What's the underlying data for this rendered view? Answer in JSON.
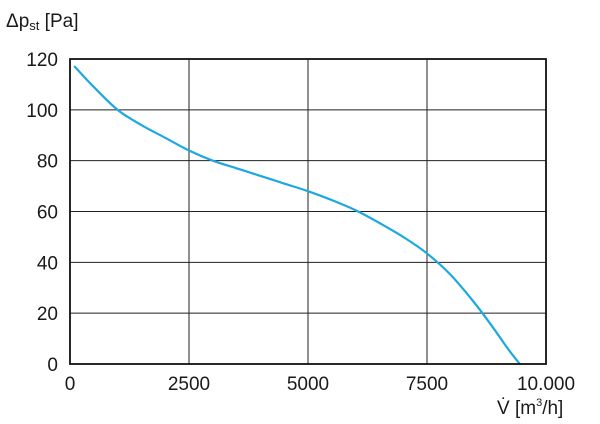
{
  "chart_data": {
    "type": "line",
    "ylabel": {
      "symbol": "Δp",
      "subscript": "st",
      "unit": "[Pa]"
    },
    "xlabel": {
      "symbol": "V̇",
      "unit_before": "[m",
      "unit_sup": "3",
      "unit_after": "/h]"
    },
    "xlim": [
      0,
      10000
    ],
    "ylim": [
      0,
      120
    ],
    "x_ticks": [
      0,
      2500,
      5000,
      7500,
      10000
    ],
    "x_tick_labels": [
      "0",
      "2500",
      "5000",
      "7500",
      "10.000"
    ],
    "y_ticks": [
      0,
      20,
      40,
      60,
      80,
      100,
      120
    ],
    "y_tick_labels": [
      "0",
      "20",
      "40",
      "60",
      "80",
      "100",
      "120"
    ],
    "grid": true,
    "line_color": "#1ea8e0",
    "series": [
      {
        "x": [
          100,
          500,
          1000,
          1500,
          2000,
          2500,
          3000,
          3500,
          4000,
          4500,
          5000,
          5500,
          6000,
          6500,
          7000,
          7500,
          8000,
          8500,
          8900,
          9200,
          9450
        ],
        "y": [
          117,
          109,
          100,
          94,
          89,
          84,
          80,
          77,
          74,
          71,
          68,
          64.5,
          60.5,
          55.5,
          50,
          43.5,
          35,
          24,
          14,
          6,
          0
        ]
      }
    ]
  }
}
